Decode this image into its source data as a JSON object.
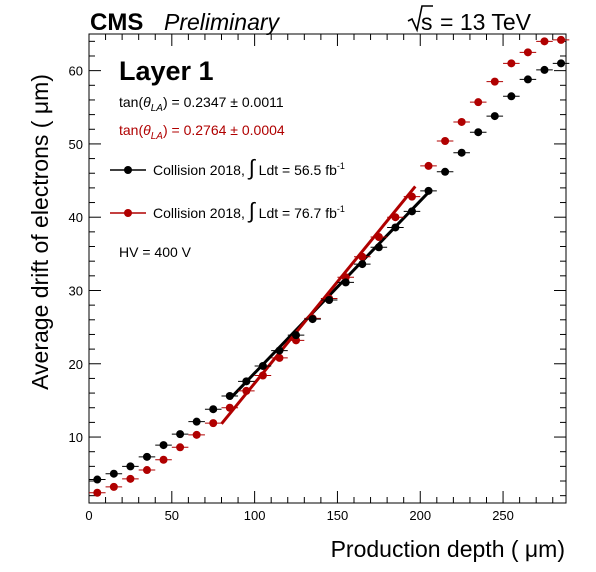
{
  "header": {
    "experiment": "CMS",
    "status": "Preliminary",
    "energy_root": "s",
    "energy_value": "= 13 TeV"
  },
  "legend": {
    "layer": "Layer 1",
    "fit1_prefix": "tan(",
    "fit1_theta": "θ",
    "fit1_sub": "LA",
    "fit1_value": ") = 0.2347 ± 0.0011",
    "fit2_prefix": "tan(",
    "fit2_theta": "θ",
    "fit2_sub": "LA",
    "fit2_value": ") = 0.2764 ± 0.0004",
    "entry1_text": "Collision 2018, ",
    "entry1_integral": "∫",
    "entry1_rest": " Ldt = 56.5 fb",
    "entry1_sup": "-1",
    "entry2_text": "Collision 2018, ",
    "entry2_integral": "∫",
    "entry2_rest": " Ldt = 76.7 fb",
    "entry2_sup": "-1",
    "hv": "HV = 400 V"
  },
  "colors": {
    "series1": "#000000",
    "series2": "#b00000"
  },
  "chart_data": {
    "type": "scatter",
    "xlabel": "Production depth ( μm)",
    "ylabel": "Average drift of electrons ( μm)",
    "xlim": [
      0,
      288
    ],
    "ylim": [
      1,
      65
    ],
    "xticks": [
      0,
      50,
      100,
      150,
      200,
      250
    ],
    "yticks": [
      10,
      20,
      30,
      40,
      50,
      60
    ],
    "x_error": 5,
    "grid": false,
    "series": [
      {
        "name": "Collision 2018, ∫ Ldt = 56.5 fb-1",
        "color": "#000000",
        "x": [
          5,
          15,
          25,
          35,
          45,
          55,
          65,
          75,
          85,
          95,
          105,
          115,
          125,
          135,
          145,
          155,
          165,
          175,
          185,
          195,
          205,
          215,
          225,
          235,
          245,
          255,
          265,
          275,
          285
        ],
        "y": [
          4.2,
          5.0,
          6.0,
          7.3,
          8.9,
          10.4,
          12.1,
          13.8,
          15.6,
          17.6,
          19.7,
          21.8,
          23.9,
          26.1,
          28.7,
          31.1,
          33.6,
          35.9,
          38.6,
          40.8,
          43.6,
          46.2,
          48.8,
          51.6,
          53.8,
          56.5,
          58.8,
          60.1,
          61.0
        ],
        "fit": {
          "slope": 0.2347,
          "x": [
            85,
            205
          ],
          "y": [
            15.2,
            43.4
          ]
        }
      },
      {
        "name": "Collision 2018, ∫ Ldt = 76.7 fb-1",
        "color": "#b00000",
        "x": [
          5,
          15,
          25,
          35,
          45,
          55,
          65,
          75,
          85,
          95,
          105,
          115,
          125,
          135,
          145,
          155,
          165,
          175,
          185,
          195,
          205,
          215,
          225,
          235,
          245,
          255,
          265,
          275,
          285
        ],
        "y": [
          2.4,
          3.2,
          4.3,
          5.5,
          6.9,
          8.6,
          10.3,
          11.9,
          14.0,
          16.3,
          18.4,
          20.8,
          23.2,
          26.2,
          28.9,
          31.8,
          34.6,
          37.3,
          40.0,
          42.8,
          47.0,
          50.4,
          53.0,
          55.7,
          58.5,
          61.0,
          62.5,
          64.0,
          64.2
        ],
        "fit": {
          "slope": 0.2764,
          "x": [
            80,
            197
          ],
          "y": [
            11.8,
            44.2
          ]
        }
      }
    ]
  }
}
